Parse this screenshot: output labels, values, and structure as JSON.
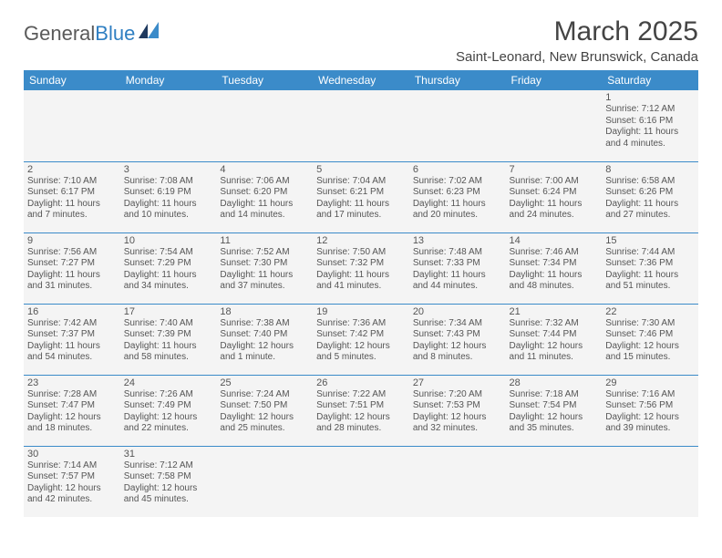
{
  "logo": {
    "general": "General",
    "blue": "Blue"
  },
  "title": "March 2025",
  "location": "Saint-Leonard, New Brunswick, Canada",
  "colors": {
    "header_bg": "#3b8bc9",
    "header_text": "#ffffff",
    "cell_bg": "#f4f4f4",
    "border": "#3b8bc9",
    "text": "#555555",
    "logo_general": "#5a5a5a",
    "logo_blue": "#2f7fc2"
  },
  "day_headers": [
    "Sunday",
    "Monday",
    "Tuesday",
    "Wednesday",
    "Thursday",
    "Friday",
    "Saturday"
  ],
  "weeks": [
    [
      null,
      null,
      null,
      null,
      null,
      null,
      {
        "n": "1",
        "sr": "Sunrise: 7:12 AM",
        "ss": "Sunset: 6:16 PM",
        "d1": "Daylight: 11 hours",
        "d2": "and 4 minutes."
      }
    ],
    [
      {
        "n": "2",
        "sr": "Sunrise: 7:10 AM",
        "ss": "Sunset: 6:17 PM",
        "d1": "Daylight: 11 hours",
        "d2": "and 7 minutes."
      },
      {
        "n": "3",
        "sr": "Sunrise: 7:08 AM",
        "ss": "Sunset: 6:19 PM",
        "d1": "Daylight: 11 hours",
        "d2": "and 10 minutes."
      },
      {
        "n": "4",
        "sr": "Sunrise: 7:06 AM",
        "ss": "Sunset: 6:20 PM",
        "d1": "Daylight: 11 hours",
        "d2": "and 14 minutes."
      },
      {
        "n": "5",
        "sr": "Sunrise: 7:04 AM",
        "ss": "Sunset: 6:21 PM",
        "d1": "Daylight: 11 hours",
        "d2": "and 17 minutes."
      },
      {
        "n": "6",
        "sr": "Sunrise: 7:02 AM",
        "ss": "Sunset: 6:23 PM",
        "d1": "Daylight: 11 hours",
        "d2": "and 20 minutes."
      },
      {
        "n": "7",
        "sr": "Sunrise: 7:00 AM",
        "ss": "Sunset: 6:24 PM",
        "d1": "Daylight: 11 hours",
        "d2": "and 24 minutes."
      },
      {
        "n": "8",
        "sr": "Sunrise: 6:58 AM",
        "ss": "Sunset: 6:26 PM",
        "d1": "Daylight: 11 hours",
        "d2": "and 27 minutes."
      }
    ],
    [
      {
        "n": "9",
        "sr": "Sunrise: 7:56 AM",
        "ss": "Sunset: 7:27 PM",
        "d1": "Daylight: 11 hours",
        "d2": "and 31 minutes."
      },
      {
        "n": "10",
        "sr": "Sunrise: 7:54 AM",
        "ss": "Sunset: 7:29 PM",
        "d1": "Daylight: 11 hours",
        "d2": "and 34 minutes."
      },
      {
        "n": "11",
        "sr": "Sunrise: 7:52 AM",
        "ss": "Sunset: 7:30 PM",
        "d1": "Daylight: 11 hours",
        "d2": "and 37 minutes."
      },
      {
        "n": "12",
        "sr": "Sunrise: 7:50 AM",
        "ss": "Sunset: 7:32 PM",
        "d1": "Daylight: 11 hours",
        "d2": "and 41 minutes."
      },
      {
        "n": "13",
        "sr": "Sunrise: 7:48 AM",
        "ss": "Sunset: 7:33 PM",
        "d1": "Daylight: 11 hours",
        "d2": "and 44 minutes."
      },
      {
        "n": "14",
        "sr": "Sunrise: 7:46 AM",
        "ss": "Sunset: 7:34 PM",
        "d1": "Daylight: 11 hours",
        "d2": "and 48 minutes."
      },
      {
        "n": "15",
        "sr": "Sunrise: 7:44 AM",
        "ss": "Sunset: 7:36 PM",
        "d1": "Daylight: 11 hours",
        "d2": "and 51 minutes."
      }
    ],
    [
      {
        "n": "16",
        "sr": "Sunrise: 7:42 AM",
        "ss": "Sunset: 7:37 PM",
        "d1": "Daylight: 11 hours",
        "d2": "and 54 minutes."
      },
      {
        "n": "17",
        "sr": "Sunrise: 7:40 AM",
        "ss": "Sunset: 7:39 PM",
        "d1": "Daylight: 11 hours",
        "d2": "and 58 minutes."
      },
      {
        "n": "18",
        "sr": "Sunrise: 7:38 AM",
        "ss": "Sunset: 7:40 PM",
        "d1": "Daylight: 12 hours",
        "d2": "and 1 minute."
      },
      {
        "n": "19",
        "sr": "Sunrise: 7:36 AM",
        "ss": "Sunset: 7:42 PM",
        "d1": "Daylight: 12 hours",
        "d2": "and 5 minutes."
      },
      {
        "n": "20",
        "sr": "Sunrise: 7:34 AM",
        "ss": "Sunset: 7:43 PM",
        "d1": "Daylight: 12 hours",
        "d2": "and 8 minutes."
      },
      {
        "n": "21",
        "sr": "Sunrise: 7:32 AM",
        "ss": "Sunset: 7:44 PM",
        "d1": "Daylight: 12 hours",
        "d2": "and 11 minutes."
      },
      {
        "n": "22",
        "sr": "Sunrise: 7:30 AM",
        "ss": "Sunset: 7:46 PM",
        "d1": "Daylight: 12 hours",
        "d2": "and 15 minutes."
      }
    ],
    [
      {
        "n": "23",
        "sr": "Sunrise: 7:28 AM",
        "ss": "Sunset: 7:47 PM",
        "d1": "Daylight: 12 hours",
        "d2": "and 18 minutes."
      },
      {
        "n": "24",
        "sr": "Sunrise: 7:26 AM",
        "ss": "Sunset: 7:49 PM",
        "d1": "Daylight: 12 hours",
        "d2": "and 22 minutes."
      },
      {
        "n": "25",
        "sr": "Sunrise: 7:24 AM",
        "ss": "Sunset: 7:50 PM",
        "d1": "Daylight: 12 hours",
        "d2": "and 25 minutes."
      },
      {
        "n": "26",
        "sr": "Sunrise: 7:22 AM",
        "ss": "Sunset: 7:51 PM",
        "d1": "Daylight: 12 hours",
        "d2": "and 28 minutes."
      },
      {
        "n": "27",
        "sr": "Sunrise: 7:20 AM",
        "ss": "Sunset: 7:53 PM",
        "d1": "Daylight: 12 hours",
        "d2": "and 32 minutes."
      },
      {
        "n": "28",
        "sr": "Sunrise: 7:18 AM",
        "ss": "Sunset: 7:54 PM",
        "d1": "Daylight: 12 hours",
        "d2": "and 35 minutes."
      },
      {
        "n": "29",
        "sr": "Sunrise: 7:16 AM",
        "ss": "Sunset: 7:56 PM",
        "d1": "Daylight: 12 hours",
        "d2": "and 39 minutes."
      }
    ],
    [
      {
        "n": "30",
        "sr": "Sunrise: 7:14 AM",
        "ss": "Sunset: 7:57 PM",
        "d1": "Daylight: 12 hours",
        "d2": "and 42 minutes."
      },
      {
        "n": "31",
        "sr": "Sunrise: 7:12 AM",
        "ss": "Sunset: 7:58 PM",
        "d1": "Daylight: 12 hours",
        "d2": "and 45 minutes."
      },
      null,
      null,
      null,
      null,
      null
    ]
  ]
}
